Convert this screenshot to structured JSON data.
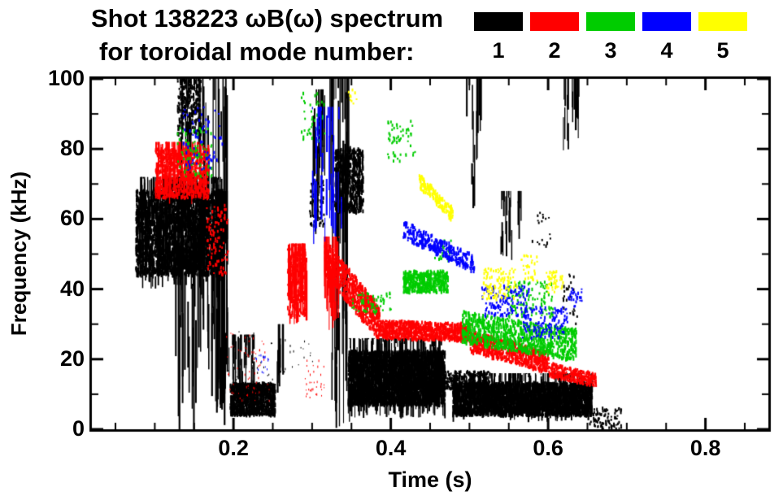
{
  "chart_data": {
    "type": "scatter",
    "title": "Shot 138223 ωB(ω) spectrum",
    "subtitle": "for toroidal mode number:",
    "xlabel": "Time (s)",
    "ylabel": "Frequency (kHz)",
    "xlim": [
      0.02,
      0.88
    ],
    "ylim": [
      0,
      100
    ],
    "xticks": [
      0.2,
      0.4,
      0.6,
      0.8
    ],
    "yticks": [
      0,
      20,
      40,
      60,
      80,
      100
    ],
    "x_minor_step": 0.05,
    "y_minor_step": 10,
    "grid": false,
    "legend_position": "top-right",
    "frame_color": "#000000",
    "background": "#ffffff",
    "legend": [
      {
        "label": "1",
        "color": "#000000"
      },
      {
        "label": "2",
        "color": "#ff0000"
      },
      {
        "label": "3",
        "color": "#00cc00"
      },
      {
        "label": "4",
        "color": "#0000ff"
      },
      {
        "label": "5",
        "color": "#ffff00"
      }
    ],
    "series": [
      {
        "name": "1",
        "color": "#000000",
        "clusters": [
          {
            "style": "blob",
            "t0": 0.075,
            "t1": 0.185,
            "f0": 44,
            "f1": 68,
            "n": 2600,
            "w": 2,
            "h": 5
          },
          {
            "style": "vstreaks",
            "t0": 0.078,
            "t1": 0.185,
            "f0": 40,
            "f1": 72,
            "hmin": 3,
            "hmax": 12,
            "n": 300
          },
          {
            "style": "vstreaks",
            "t0": 0.125,
            "t1": 0.195,
            "f0": 0,
            "f1": 100,
            "hmin": 5,
            "hmax": 45,
            "n": 90
          },
          {
            "style": "vstreaks",
            "t0": 0.172,
            "t1": 0.192,
            "f0": 0,
            "f1": 68,
            "hmin": 10,
            "hmax": 55,
            "n": 55
          },
          {
            "style": "blob",
            "t0": 0.128,
            "t1": 0.158,
            "f0": 84,
            "f1": 100,
            "n": 260,
            "w": 2,
            "h": 4
          },
          {
            "style": "blob",
            "t0": 0.195,
            "t1": 0.252,
            "f0": 4,
            "f1": 13,
            "n": 1100,
            "w": 2,
            "h": 4
          },
          {
            "style": "vstreaks",
            "t0": 0.198,
            "t1": 0.225,
            "f0": 4,
            "f1": 27,
            "hmin": 4,
            "hmax": 14,
            "n": 45
          },
          {
            "style": "blob",
            "t0": 0.19,
            "t1": 0.3,
            "f0": 14,
            "f1": 28,
            "n": 45,
            "w": 1,
            "h": 2
          },
          {
            "style": "vstreaks",
            "t0": 0.254,
            "t1": 0.263,
            "f0": 0,
            "f1": 30,
            "hmin": 8,
            "hmax": 25,
            "n": 8
          },
          {
            "style": "blob",
            "t0": 0.296,
            "t1": 0.314,
            "f0": 58,
            "f1": 72,
            "n": 70,
            "w": 2,
            "h": 3
          },
          {
            "style": "vstreaks",
            "t0": 0.298,
            "t1": 0.316,
            "f0": 55,
            "f1": 97,
            "hmin": 5,
            "hmax": 25,
            "n": 20
          },
          {
            "style": "vstreaks",
            "t0": 0.322,
            "t1": 0.347,
            "f0": 0,
            "f1": 100,
            "hmin": 8,
            "hmax": 60,
            "n": 48
          },
          {
            "style": "blob",
            "t0": 0.328,
            "t1": 0.364,
            "f0": 62,
            "f1": 80,
            "n": 550,
            "w": 2,
            "h": 5
          },
          {
            "style": "blob",
            "t0": 0.345,
            "t1": 0.468,
            "f0": 7,
            "f1": 22,
            "n": 3200,
            "w": 2,
            "h": 5
          },
          {
            "style": "vstreaks",
            "t0": 0.345,
            "t1": 0.468,
            "f0": 3,
            "f1": 26,
            "hmin": 3,
            "hmax": 10,
            "n": 240
          },
          {
            "style": "band",
            "t0": 0.4,
            "t1": 0.525,
            "fc0": 14,
            "fc1": 14,
            "spread": 2.5,
            "n": 650,
            "w": 2,
            "h": 3
          },
          {
            "style": "blob",
            "t0": 0.478,
            "t1": 0.655,
            "f0": 4,
            "f1": 13,
            "n": 2800,
            "w": 2,
            "h": 5
          },
          {
            "style": "vstreaks",
            "t0": 0.478,
            "t1": 0.655,
            "f0": 2,
            "f1": 16,
            "hmin": 3,
            "hmax": 8,
            "n": 200
          },
          {
            "style": "vstreaks",
            "t0": 0.495,
            "t1": 0.515,
            "f0": 60,
            "f1": 100,
            "hmin": 5,
            "hmax": 25,
            "n": 14
          },
          {
            "style": "vstreaks",
            "t0": 0.538,
            "t1": 0.565,
            "f0": 48,
            "f1": 68,
            "hmin": 4,
            "hmax": 16,
            "n": 24
          },
          {
            "style": "blob",
            "t0": 0.578,
            "t1": 0.602,
            "f0": 52,
            "f1": 62,
            "n": 18,
            "w": 2,
            "h": 3
          },
          {
            "style": "vstreaks",
            "t0": 0.618,
            "t1": 0.64,
            "f0": 78,
            "f1": 100,
            "hmin": 4,
            "hmax": 18,
            "n": 18
          },
          {
            "style": "blob",
            "t0": 0.618,
            "t1": 0.636,
            "f0": 30,
            "f1": 45,
            "n": 26,
            "w": 2,
            "h": 3
          },
          {
            "style": "blob",
            "t0": 0.652,
            "t1": 0.692,
            "f0": 0,
            "f1": 6,
            "n": 90,
            "w": 2,
            "h": 3
          }
        ]
      },
      {
        "name": "2",
        "color": "#ff0000",
        "clusters": [
          {
            "style": "blob",
            "t0": 0.1,
            "t1": 0.168,
            "f0": 66,
            "f1": 80,
            "n": 700,
            "w": 2,
            "h": 4
          },
          {
            "style": "vstreaks",
            "t0": 0.1,
            "t1": 0.168,
            "f0": 64,
            "f1": 82,
            "hmin": 3,
            "hmax": 10,
            "n": 80
          },
          {
            "style": "blob",
            "t0": 0.165,
            "t1": 0.193,
            "f0": 44,
            "f1": 64,
            "n": 110,
            "w": 2,
            "h": 3
          },
          {
            "style": "blob",
            "t0": 0.19,
            "t1": 0.245,
            "f0": 8,
            "f1": 28,
            "n": 60,
            "w": 1,
            "h": 2
          },
          {
            "style": "blob",
            "t0": 0.29,
            "t1": 0.315,
            "f0": 8,
            "f1": 20,
            "n": 35,
            "w": 1,
            "h": 2
          },
          {
            "style": "vstreaks",
            "t0": 0.268,
            "t1": 0.292,
            "f0": 30,
            "f1": 53,
            "hmin": 5,
            "hmax": 18,
            "n": 60
          },
          {
            "style": "blob",
            "t0": 0.268,
            "t1": 0.292,
            "f0": 32,
            "f1": 52,
            "n": 230,
            "w": 2,
            "h": 4
          },
          {
            "style": "vstreaks",
            "t0": 0.315,
            "t1": 0.335,
            "f0": 28,
            "f1": 55,
            "hmin": 5,
            "hmax": 18,
            "n": 45
          },
          {
            "style": "band",
            "t0": 0.315,
            "t1": 0.385,
            "fc0": 49,
            "fc1": 30,
            "spread": 5,
            "n": 750,
            "w": 2,
            "h": 4
          },
          {
            "style": "band",
            "t0": 0.385,
            "t1": 0.5,
            "fc0": 28.5,
            "fc1": 27.5,
            "spread": 2.5,
            "n": 850,
            "w": 2,
            "h": 4
          },
          {
            "style": "band",
            "t0": 0.5,
            "t1": 0.6,
            "fc0": 25,
            "fc1": 19,
            "spread": 3,
            "n": 650,
            "w": 2,
            "h": 4
          },
          {
            "style": "band",
            "t0": 0.6,
            "t1": 0.66,
            "fc0": 17,
            "fc1": 14,
            "spread": 2,
            "n": 320,
            "w": 2,
            "h": 3
          }
        ]
      },
      {
        "name": "3",
        "color": "#00cc00",
        "clusters": [
          {
            "style": "blob",
            "t0": 0.128,
            "t1": 0.172,
            "f0": 72,
            "f1": 86,
            "n": 80,
            "w": 2,
            "h": 3
          },
          {
            "style": "blob",
            "t0": 0.285,
            "t1": 0.315,
            "f0": 82,
            "f1": 96,
            "n": 45,
            "w": 2,
            "h": 3
          },
          {
            "style": "blob",
            "t0": 0.395,
            "t1": 0.43,
            "f0": 76,
            "f1": 88,
            "n": 55,
            "w": 2,
            "h": 3
          },
          {
            "style": "blob",
            "t0": 0.415,
            "t1": 0.472,
            "f0": 39,
            "f1": 45,
            "n": 420,
            "w": 2,
            "h": 4
          },
          {
            "style": "blob",
            "t0": 0.35,
            "t1": 0.4,
            "f0": 33,
            "f1": 39,
            "n": 55,
            "w": 2,
            "h": 3
          },
          {
            "style": "blob",
            "t0": 0.455,
            "t1": 0.478,
            "f0": 48,
            "f1": 54,
            "n": 28,
            "w": 2,
            "h": 3
          },
          {
            "style": "band",
            "t0": 0.49,
            "t1": 0.635,
            "fc0": 29,
            "fc1": 24,
            "spread": 4.5,
            "n": 900,
            "w": 2,
            "h": 4
          },
          {
            "style": "blob",
            "t0": 0.545,
            "t1": 0.605,
            "f0": 32,
            "f1": 42,
            "n": 130,
            "w": 2,
            "h": 3
          }
        ]
      },
      {
        "name": "4",
        "color": "#0000ff",
        "clusters": [
          {
            "style": "blob",
            "t0": 0.135,
            "t1": 0.185,
            "f0": 74,
            "f1": 92,
            "n": 70,
            "w": 2,
            "h": 3
          },
          {
            "style": "vstreaks",
            "t0": 0.298,
            "t1": 0.338,
            "f0": 52,
            "f1": 92,
            "hmin": 4,
            "hmax": 16,
            "n": 40
          },
          {
            "style": "band",
            "t0": 0.415,
            "t1": 0.505,
            "fc0": 57,
            "fc1": 47,
            "spread": 2.5,
            "n": 300,
            "w": 2,
            "h": 4
          },
          {
            "style": "blob",
            "t0": 0.515,
            "t1": 0.575,
            "f0": 32,
            "f1": 41,
            "n": 140,
            "w": 2,
            "h": 3
          },
          {
            "style": "blob",
            "t0": 0.565,
            "t1": 0.625,
            "f0": 26,
            "f1": 35,
            "n": 140,
            "w": 2,
            "h": 3
          },
          {
            "style": "blob",
            "t0": 0.625,
            "t1": 0.642,
            "f0": 35,
            "f1": 40,
            "n": 24,
            "w": 2,
            "h": 3
          },
          {
            "style": "blob",
            "t0": 0.228,
            "t1": 0.248,
            "f0": 16,
            "f1": 22,
            "n": 18,
            "w": 1,
            "h": 2
          }
        ]
      },
      {
        "name": "5",
        "color": "#ffff00",
        "clusters": [
          {
            "style": "band",
            "t0": 0.435,
            "t1": 0.478,
            "fc0": 71,
            "fc1": 61,
            "spread": 2,
            "n": 150,
            "w": 2,
            "h": 4
          },
          {
            "style": "blob",
            "t0": 0.515,
            "t1": 0.56,
            "f0": 37,
            "f1": 46,
            "n": 110,
            "w": 2,
            "h": 3
          },
          {
            "style": "blob",
            "t0": 0.565,
            "t1": 0.585,
            "f0": 42,
            "f1": 50,
            "n": 30,
            "w": 2,
            "h": 3
          },
          {
            "style": "blob",
            "t0": 0.595,
            "t1": 0.618,
            "f0": 39,
            "f1": 45,
            "n": 45,
            "w": 2,
            "h": 3
          },
          {
            "style": "blob",
            "t0": 0.345,
            "t1": 0.356,
            "f0": 92,
            "f1": 97,
            "n": 10,
            "w": 2,
            "h": 3
          }
        ]
      }
    ]
  }
}
